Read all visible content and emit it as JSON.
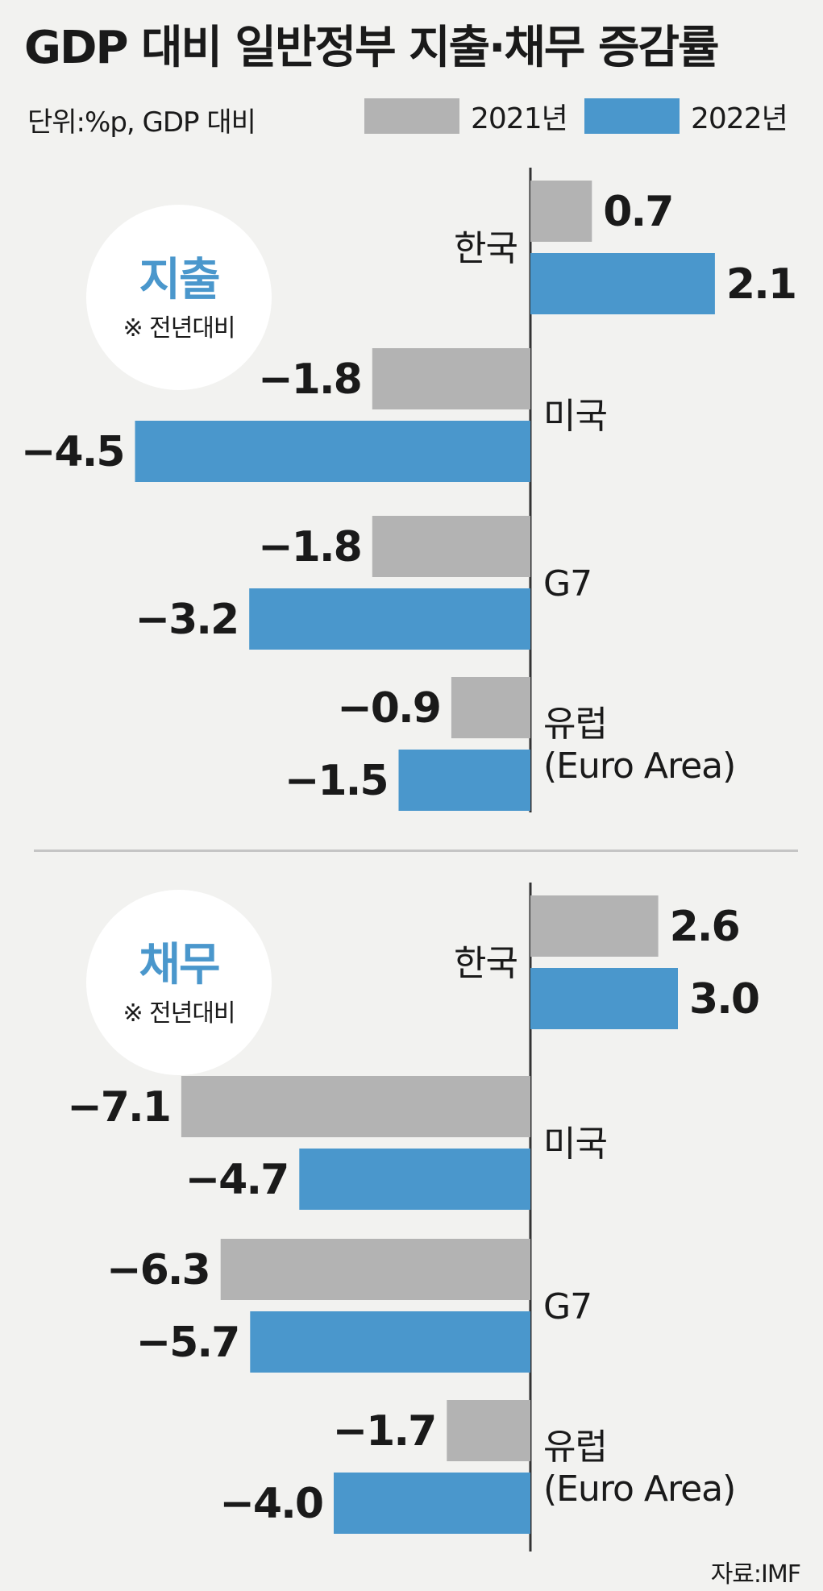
{
  "title": "GDP 대비 일반정부 지출·채무 증감률",
  "unit_note": "단위:%p, GDP 대비",
  "legend": [
    {
      "label": "2021년",
      "color": "#b3b3b3"
    },
    {
      "label": "2022년",
      "color": "#4a97cc"
    }
  ],
  "source": "자료:IMF",
  "chart_data": [
    {
      "type": "bar",
      "title": "지출",
      "subtitle": "※ 전년대비",
      "categories": [
        "한국",
        "미국",
        "G7",
        "유럽\n(Euro Area)"
      ],
      "series": [
        {
          "name": "2021년",
          "values": [
            0.7,
            -1.8,
            -1.8,
            -0.9
          ],
          "labels": [
            "0.7",
            "−1.8",
            "−1.8",
            "−0.9"
          ]
        },
        {
          "name": "2022년",
          "values": [
            2.1,
            -4.5,
            -3.2,
            -1.5
          ],
          "labels": [
            "2.1",
            "−4.5",
            "−3.2",
            "−1.5"
          ]
        }
      ],
      "orientation": "horizontal"
    },
    {
      "type": "bar",
      "title": "채무",
      "subtitle": "※ 전년대비",
      "categories": [
        "한국",
        "미국",
        "G7",
        "유럽\n(Euro Area)"
      ],
      "series": [
        {
          "name": "2021년",
          "values": [
            2.6,
            -7.1,
            -6.3,
            -1.7
          ],
          "labels": [
            "2.6",
            "−7.1",
            "−6.3",
            "−1.7"
          ]
        },
        {
          "name": "2022년",
          "values": [
            3.0,
            -4.7,
            -5.7,
            -4.0
          ],
          "labels": [
            "3.0",
            "−4.7",
            "−5.7",
            "−4.0"
          ]
        }
      ],
      "orientation": "horizontal"
    }
  ]
}
